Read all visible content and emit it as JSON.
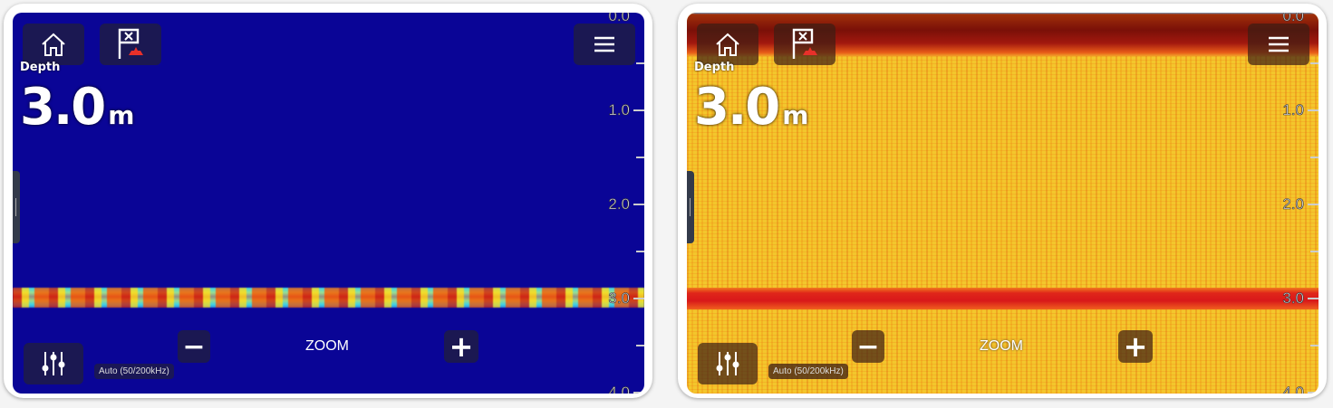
{
  "panels": [
    {
      "palette": "blue",
      "depth_label": "Depth",
      "depth_value": "3.0",
      "depth_unit": "m",
      "zoom_label": "ZOOM",
      "minus": "−",
      "plus": "+",
      "frequency": "Auto (50/200kHz)",
      "scale": [
        "0.0",
        "1.0",
        "2.0",
        "3.0",
        "4.0"
      ],
      "bottom_depth_m": 3.0,
      "colors": {
        "background": "#0a0596",
        "echo": "#e8401c"
      }
    },
    {
      "palette": "yellow",
      "depth_label": "Depth",
      "depth_value": "3.0",
      "depth_unit": "m",
      "zoom_label": "ZOOM",
      "minus": "−",
      "plus": "+",
      "frequency": "Auto (50/200kHz)",
      "scale": [
        "0.0",
        "1.0",
        "2.0",
        "3.0",
        "4.0"
      ],
      "bottom_depth_m": 3.0,
      "colors": {
        "background": "#f2c22a",
        "echo": "#d8181a"
      }
    }
  ],
  "icons": {
    "home": "home-icon",
    "waypoint": "waypoint-flag-icon",
    "menu": "hamburger-menu-icon",
    "settings": "sliders-icon"
  }
}
